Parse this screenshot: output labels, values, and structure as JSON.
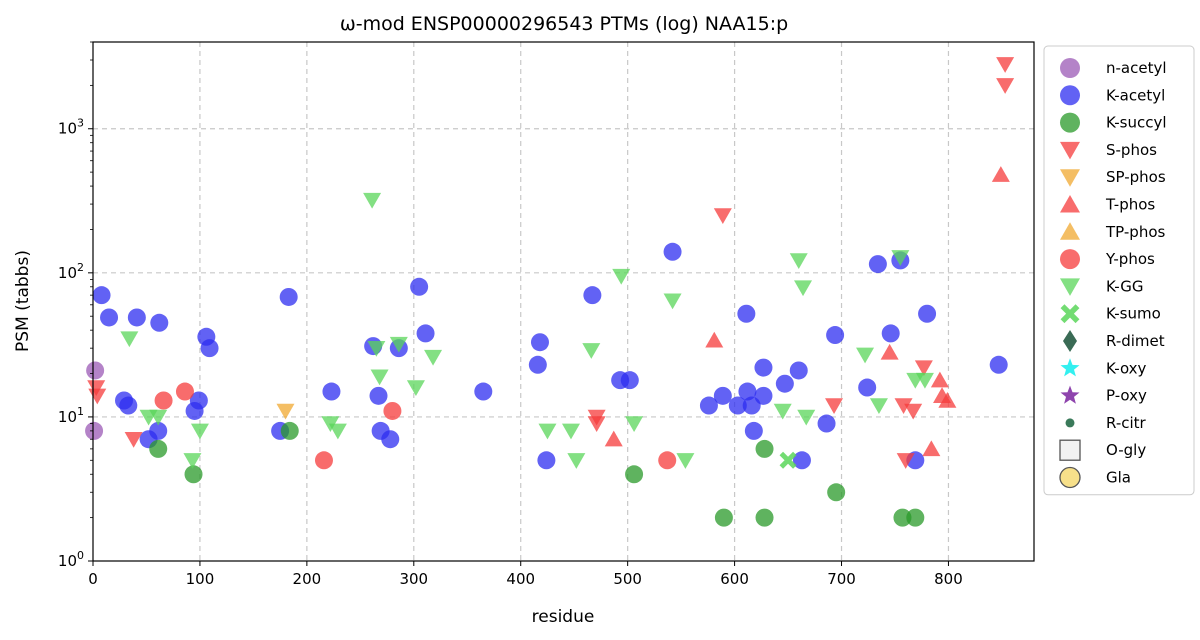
{
  "chart_data": {
    "type": "scatter",
    "title": "ω-mod ENSP00000296543 PTMs (log) NAA15:p",
    "xlabel": "residue",
    "ylabel": "PSM (tabbs)",
    "xlim": [
      0,
      880
    ],
    "ylim": [
      1,
      4000
    ],
    "yscale": "log",
    "grid": true,
    "legend_position": "outside-right",
    "x_ticks": [
      "0",
      "100",
      "200",
      "300",
      "400",
      "500",
      "600",
      "700",
      "800"
    ],
    "y_ticks": [
      {
        "base": "10",
        "exp": "0"
      },
      {
        "base": "10",
        "exp": "1"
      },
      {
        "base": "10",
        "exp": "2"
      },
      {
        "base": "10",
        "exp": "3"
      }
    ],
    "series": [
      {
        "name": "n-acetyl",
        "marker": "circle",
        "color": "#9b59b6",
        "points": [
          [
            2,
            21
          ],
          [
            1,
            8
          ]
        ]
      },
      {
        "name": "K-acetyl",
        "marker": "circle",
        "color": "#2e2ef0",
        "points": [
          [
            8,
            70
          ],
          [
            15,
            49
          ],
          [
            29,
            13
          ],
          [
            33,
            12
          ],
          [
            41,
            49
          ],
          [
            52,
            7
          ],
          [
            61,
            8
          ],
          [
            62,
            45
          ],
          [
            95,
            11
          ],
          [
            99,
            13
          ],
          [
            106,
            36
          ],
          [
            109,
            30
          ],
          [
            175,
            8
          ],
          [
            183,
            68
          ],
          [
            223,
            15
          ],
          [
            262,
            31
          ],
          [
            267,
            14
          ],
          [
            269,
            8
          ],
          [
            278,
            7
          ],
          [
            286,
            30
          ],
          [
            305,
            80
          ],
          [
            311,
            38
          ],
          [
            365,
            15
          ],
          [
            416,
            23
          ],
          [
            418,
            33
          ],
          [
            424,
            5
          ],
          [
            467,
            70
          ],
          [
            493,
            18
          ],
          [
            502,
            18
          ],
          [
            542,
            140
          ],
          [
            576,
            12
          ],
          [
            589,
            14
          ],
          [
            603,
            12
          ],
          [
            611,
            52
          ],
          [
            612,
            15
          ],
          [
            616,
            12
          ],
          [
            618,
            8
          ],
          [
            627,
            22
          ],
          [
            627,
            14
          ],
          [
            647,
            17
          ],
          [
            660,
            21
          ],
          [
            663,
            5
          ],
          [
            686,
            9
          ],
          [
            694,
            37
          ],
          [
            724,
            16
          ],
          [
            734,
            115
          ],
          [
            746,
            38
          ],
          [
            755,
            122
          ],
          [
            769,
            5
          ],
          [
            780,
            52
          ],
          [
            847,
            23
          ]
        ]
      },
      {
        "name": "K-succyl",
        "marker": "circle",
        "color": "#2a9a2a",
        "points": [
          [
            61,
            6
          ],
          [
            94,
            4
          ],
          [
            184,
            8
          ],
          [
            506,
            4
          ],
          [
            590,
            2
          ],
          [
            628,
            6
          ],
          [
            628,
            2
          ],
          [
            695,
            3
          ],
          [
            757,
            2
          ],
          [
            769,
            2
          ]
        ]
      },
      {
        "name": "S-phos",
        "marker": "tri-down",
        "color": "#f53b3b",
        "points": [
          [
            3,
            16
          ],
          [
            4,
            14
          ],
          [
            38,
            7
          ],
          [
            471,
            10
          ],
          [
            471,
            9
          ],
          [
            589,
            250
          ],
          [
            693,
            12
          ],
          [
            758,
            12
          ],
          [
            760,
            5
          ],
          [
            767,
            11
          ],
          [
            777,
            22
          ],
          [
            853,
            2800
          ],
          [
            853,
            2000
          ]
        ]
      },
      {
        "name": "SP-phos",
        "marker": "tri-down",
        "color": "#f0a830",
        "points": [
          [
            180,
            11
          ]
        ]
      },
      {
        "name": "T-phos",
        "marker": "triangle",
        "color": "#f53b3b",
        "points": [
          [
            487,
            7
          ],
          [
            581,
            34
          ],
          [
            745,
            28
          ],
          [
            784,
            6
          ],
          [
            792,
            18
          ],
          [
            794,
            14
          ],
          [
            799,
            13
          ],
          [
            849,
            480
          ]
        ]
      },
      {
        "name": "TP-phos",
        "marker": "triangle",
        "color": "#f0a830",
        "points": []
      },
      {
        "name": "Y-phos",
        "marker": "circle",
        "color": "#f53b3b",
        "points": [
          [
            66,
            13
          ],
          [
            86,
            15
          ],
          [
            216,
            5
          ],
          [
            280,
            11
          ],
          [
            537,
            5
          ]
        ]
      },
      {
        "name": "K-GG",
        "marker": "tri-down",
        "color": "#5ad65a",
        "points": [
          [
            34,
            35
          ],
          [
            52,
            10
          ],
          [
            61,
            10
          ],
          [
            93,
            5
          ],
          [
            100,
            8
          ],
          [
            222,
            9
          ],
          [
            229,
            8
          ],
          [
            261,
            320
          ],
          [
            265,
            30
          ],
          [
            268,
            19
          ],
          [
            286,
            32
          ],
          [
            302,
            16
          ],
          [
            318,
            26
          ],
          [
            425,
            8
          ],
          [
            447,
            8
          ],
          [
            452,
            5
          ],
          [
            466,
            29
          ],
          [
            494,
            95
          ],
          [
            506,
            9
          ],
          [
            542,
            64
          ],
          [
            554,
            5
          ],
          [
            645,
            11
          ],
          [
            660,
            122
          ],
          [
            664,
            79
          ],
          [
            667,
            10
          ],
          [
            722,
            27
          ],
          [
            735,
            12
          ],
          [
            755,
            128
          ],
          [
            769,
            18
          ],
          [
            778,
            18
          ]
        ]
      },
      {
        "name": "K-sumo",
        "marker": "x",
        "color": "#5ad65a",
        "points": [
          [
            650,
            5
          ]
        ]
      },
      {
        "name": "R-dimet",
        "marker": "diamond",
        "color": "#3a6b55",
        "points": []
      },
      {
        "name": "K-oxy",
        "marker": "star",
        "color": "#33f0f0",
        "points": []
      },
      {
        "name": "P-oxy",
        "marker": "star",
        "color": "#8e44ad",
        "points": []
      },
      {
        "name": "R-citr",
        "marker": "small-circle",
        "color": "#3a7a5a",
        "points": []
      },
      {
        "name": "O-gly",
        "marker": "square-open",
        "color": "#555555",
        "points": []
      },
      {
        "name": "Gla",
        "marker": "circle-open",
        "color": "#f7e08a",
        "points": []
      }
    ]
  }
}
